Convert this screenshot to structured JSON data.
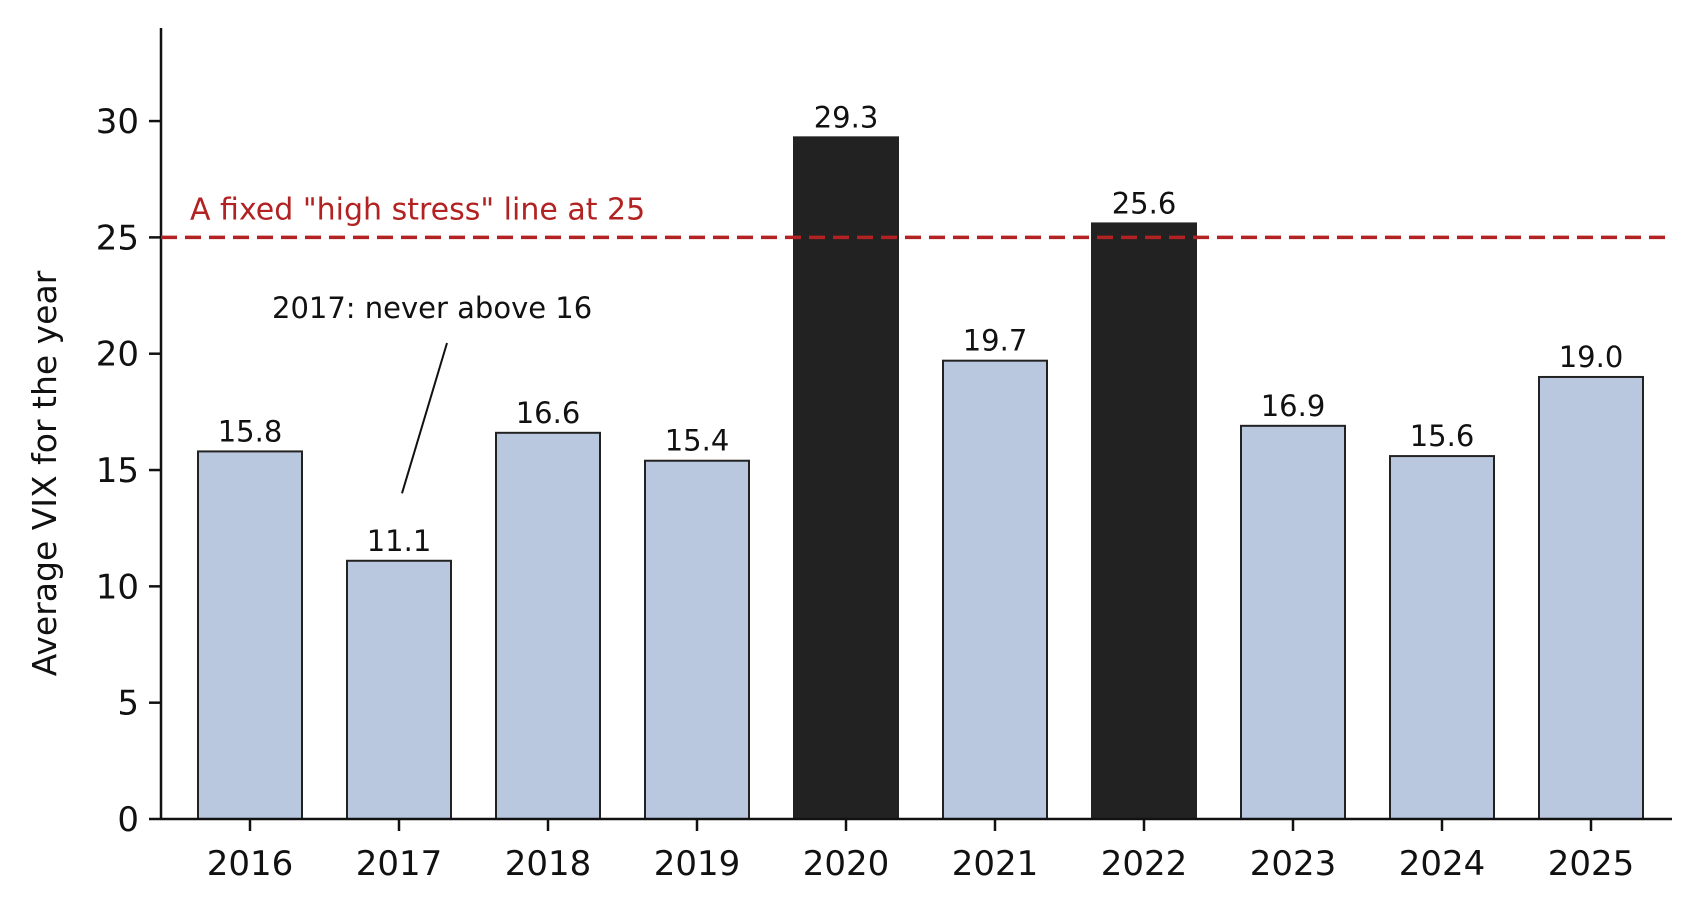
{
  "chart_data": {
    "type": "bar",
    "categories": [
      "2016",
      "2017",
      "2018",
      "2019",
      "2020",
      "2021",
      "2022",
      "2023",
      "2024",
      "2025"
    ],
    "values": [
      15.8,
      11.1,
      16.6,
      15.4,
      29.3,
      19.7,
      25.6,
      16.9,
      15.6,
      19.0
    ],
    "value_labels": [
      "15.8",
      "11.1",
      "16.6",
      "15.4",
      "29.3",
      "19.7",
      "25.6",
      "16.9",
      "15.6",
      "19.0"
    ],
    "title": "",
    "xlabel": "",
    "ylabel": "Average VIX for the year",
    "ylim": [
      0,
      34
    ],
    "yticks": [
      0,
      5,
      10,
      15,
      20,
      25,
      30
    ],
    "grid": false,
    "colors": {
      "normal_bar": "#b9c7df",
      "high_stress_bar": "#222222",
      "bar_edge": "#222222",
      "reference_line": "#b22222"
    },
    "reference_line": {
      "value": 25,
      "label": "A fixed \"high stress\" line at 25",
      "style": "dashed"
    },
    "annotation": {
      "text": "2017: never above 16",
      "category": "2017",
      "arrow_tip_value": 14
    }
  }
}
